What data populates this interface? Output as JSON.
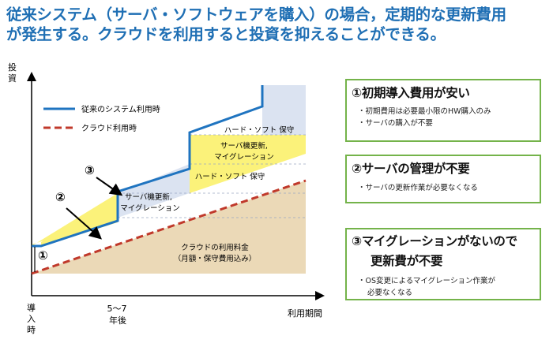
{
  "headline": {
    "line1": "従来システム（サーバ・ソフトウェアを購入）の場合，定期的な更新費用",
    "line2": "が発生する。クラウドを利用すると投資を抑えることができる。"
  },
  "chart": {
    "y_axis_label": [
      "投",
      "資"
    ],
    "x_axis_label": "利用期間",
    "x_start_label": [
      "導",
      "入",
      "時"
    ],
    "x_mid_label_line1": "5〜7",
    "x_mid_label_line2": "年後",
    "legend": {
      "traditional": "従来のシステム利用時",
      "cloud": "クラウド利用時"
    },
    "regions": {
      "cloud_fee_line1": "クラウドの利用料金",
      "cloud_fee_line2": "（月額・保守費用込み）",
      "maint_1": "ハード・ソフト 保守",
      "maint_2": "ハード・ソフト 保守",
      "renew_1_line1": "サーバ機更新,",
      "renew_1_line2": "マイグレーション",
      "renew_2_line1": "サーバ機更新,",
      "renew_2_line2": "マイグレーション"
    },
    "markers": {
      "m1": "①",
      "m2": "②",
      "m3": "③"
    },
    "colors": {
      "traditional_line": "#1f74c0",
      "cloud_line": "#c0392b",
      "cloud_area": "#ebd9b7",
      "maintenance_band": "#fbf27a",
      "renewal_band": "#dbe3f1"
    }
  },
  "points": [
    {
      "title": "①初期導入費用が安い",
      "bullets": [
        "・初期費用は必要最小限のHW購入のみ",
        "・サーバの購入が不要"
      ]
    },
    {
      "title": "②サーバの管理が不要",
      "bullets": [
        "・サーバの更新作業が必要なくなる"
      ]
    },
    {
      "title_line1": "③マイグレーションがないので",
      "title_line2": "更新費が不要",
      "bullet_line1": "・OS変更によるマイグレーション作業が",
      "bullet_line2": "必要なくなる"
    }
  ]
}
